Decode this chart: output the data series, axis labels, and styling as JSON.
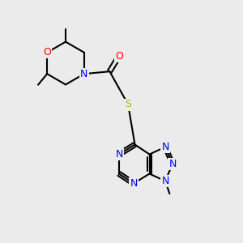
{
  "bg_color": "#ebebeb",
  "atom_colors": {
    "N": "#0000ff",
    "O": "#ff0000",
    "S": "#b8b800"
  },
  "bond_color": "#000000",
  "bond_width": 1.5
}
